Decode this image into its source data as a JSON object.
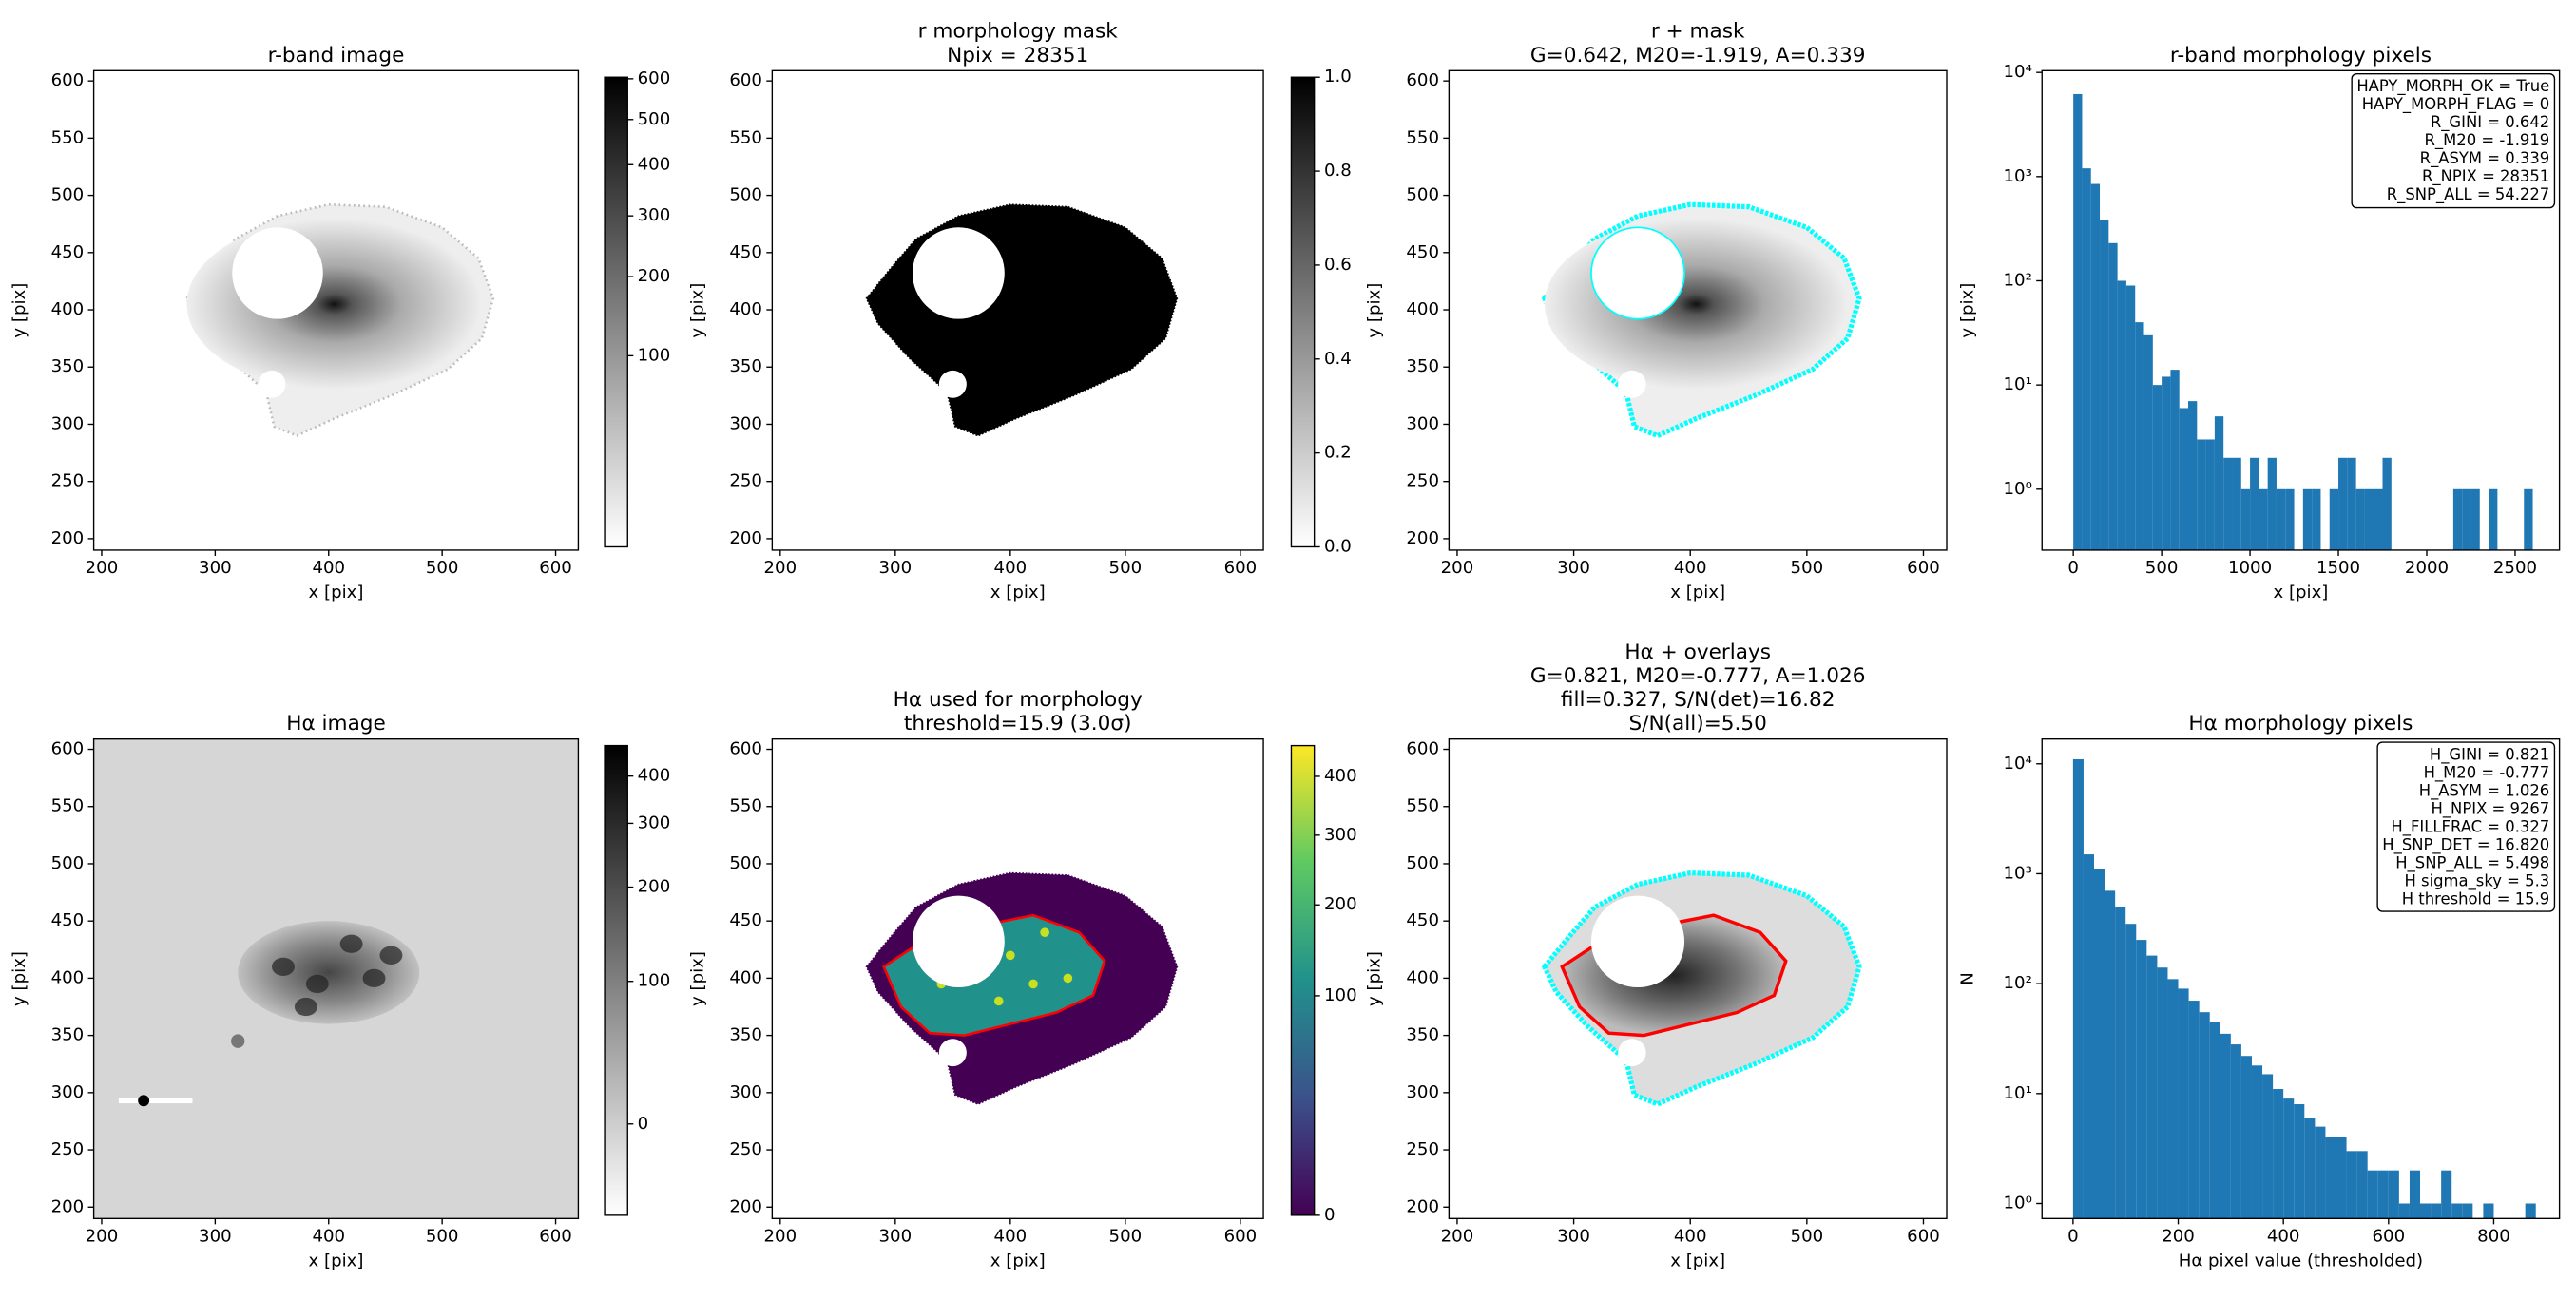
{
  "chart_data": [
    {
      "type": "image",
      "title": [
        "r-band image"
      ],
      "xlabel": "x [pix]",
      "ylabel": "y [pix]",
      "xlim": [
        193,
        620
      ],
      "ylim": [
        190,
        609
      ],
      "xticks": [
        200,
        300,
        400,
        500,
        600
      ],
      "yticks": [
        200,
        250,
        300,
        350,
        400,
        450,
        500,
        550,
        600
      ],
      "colorbar": {
        "cmap": "gray_r",
        "scale": "sqrt",
        "clim": [
          0,
          604
        ],
        "ticks": [
          100,
          200,
          300,
          400,
          500,
          600
        ]
      }
    },
    {
      "type": "image",
      "title": [
        "r morphology mask",
        "Npix = 28351"
      ],
      "xlabel": "x [pix]",
      "ylabel": "y [pix]",
      "xlim": [
        193,
        620
      ],
      "ylim": [
        190,
        609
      ],
      "xticks": [
        200,
        300,
        400,
        500,
        600
      ],
      "yticks": [
        200,
        250,
        300,
        350,
        400,
        450,
        500,
        550,
        600
      ],
      "colorbar": {
        "cmap": "gray_r",
        "scale": "linear",
        "clim": [
          0,
          1
        ],
        "ticks": [
          {
            "value": 0,
            "label": "0.0"
          },
          0.2,
          0.4,
          0.6,
          0.8,
          {
            "value": 1,
            "label": "1.0"
          }
        ]
      }
    },
    {
      "type": "image",
      "title": [
        "r + mask",
        "G=0.642, M20=-1.919, A=0.339"
      ],
      "xlabel": "x [pix]",
      "ylabel": "y [pix]",
      "xlim": [
        193,
        620
      ],
      "ylim": [
        190,
        609
      ],
      "xticks": [
        200,
        300,
        400,
        500,
        600
      ],
      "yticks": [
        200,
        250,
        300,
        350,
        400,
        450,
        500,
        550,
        600
      ]
    },
    {
      "type": "histogram",
      "title": [
        "r-band morphology pixels"
      ],
      "xlabel": "x [pix]",
      "ylabel": "y [pix]",
      "color": "#1f77b4",
      "ylog": true,
      "xlim": [
        -177,
        2751
      ],
      "ylim": [
        0.26,
        10400
      ],
      "xticks": [
        0,
        500,
        1000,
        1500,
        2000,
        2500
      ],
      "yticks": [
        {
          "value": 1,
          "label": "10⁰"
        },
        {
          "value": 10,
          "label": "10¹"
        },
        {
          "value": 100,
          "label": "10²"
        },
        {
          "value": 1000,
          "label": "10³"
        },
        {
          "value": 10000,
          "label": "10⁴"
        }
      ],
      "bins": [
        0,
        50,
        100,
        150,
        200,
        250,
        300,
        350,
        400,
        450,
        500,
        550,
        600,
        650,
        700,
        750,
        800,
        850,
        900,
        950,
        1000,
        1050,
        1100,
        1150,
        1200,
        1250,
        1300,
        1350,
        1400,
        1450,
        1500,
        1550,
        1600,
        1650,
        1700,
        1750,
        1800,
        1850,
        1900,
        1950,
        2000,
        2050,
        2100,
        2150,
        2200,
        2250,
        2300,
        2350,
        2400,
        2450,
        2500,
        2550,
        2600
      ],
      "values": [
        6200,
        1200,
        850,
        380,
        230,
        100,
        90,
        40,
        30,
        10,
        12,
        14,
        6,
        7,
        3,
        3,
        5,
        2,
        2,
        1,
        2,
        1,
        2,
        1,
        1,
        0,
        1,
        1,
        0,
        1,
        2,
        2,
        1,
        1,
        1,
        2,
        0,
        0,
        0,
        0,
        0,
        0,
        0,
        1,
        1,
        1,
        0,
        1,
        0,
        0,
        0,
        1
      ],
      "annotation": [
        "HAPY_MORPH_OK = True",
        "HAPY_MORPH_FLAG = 0",
        "R_GINI = 0.642",
        "R_M20 = -1.919",
        "R_ASYM = 0.339",
        "R_NPIX = 28351",
        "R_SNP_ALL = 54.227"
      ]
    },
    {
      "type": "image",
      "title": [
        "Hα image"
      ],
      "xlabel": "x [pix]",
      "ylabel": "y [pix]",
      "xlim": [
        193,
        620
      ],
      "ylim": [
        190,
        609
      ],
      "xticks": [
        200,
        300,
        400,
        500,
        600
      ],
      "yticks": [
        200,
        250,
        300,
        350,
        400,
        450,
        500,
        550,
        600
      ],
      "colorbar": {
        "cmap": "gray_r",
        "scale": "asinh",
        "clim": [
          -60,
          480
        ],
        "ticks": [
          0,
          100,
          200,
          300,
          400
        ]
      }
    },
    {
      "type": "image",
      "title": [
        "Hα used for morphology",
        "threshold=15.9 (3.0σ)"
      ],
      "xlabel": "x [pix]",
      "ylabel": "y [pix]",
      "xlim": [
        193,
        620
      ],
      "ylim": [
        190,
        609
      ],
      "xticks": [
        200,
        300,
        400,
        500,
        600
      ],
      "yticks": [
        200,
        250,
        300,
        350,
        400,
        450,
        500,
        550,
        600
      ],
      "colorbar": {
        "cmap": "viridis",
        "scale": "sqrt",
        "clim": [
          0,
          458
        ],
        "ticks": [
          0,
          100,
          200,
          300,
          400
        ]
      }
    },
    {
      "type": "image",
      "title": [
        "Hα + overlays",
        "G=0.821, M20=-0.777, A=1.026",
        "fill=0.327, S/N(det)=16.82",
        "S/N(all)=5.50"
      ],
      "xlabel": "x [pix]",
      "ylabel": "y [pix]",
      "xlim": [
        193,
        620
      ],
      "ylim": [
        190,
        609
      ],
      "xticks": [
        200,
        300,
        400,
        500,
        600
      ],
      "yticks": [
        200,
        250,
        300,
        350,
        400,
        450,
        500,
        550,
        600
      ]
    },
    {
      "type": "histogram",
      "title": [
        "Hα morphology pixels"
      ],
      "xlabel": "Hα pixel value (thresholded)",
      "ylabel": "N",
      "color": "#1f77b4",
      "ylog": true,
      "xlim": [
        -59,
        925
      ],
      "ylim": [
        0.73,
        16800
      ],
      "xticks": [
        0,
        200,
        400,
        600,
        800
      ],
      "yticks": [
        {
          "value": 1,
          "label": "10⁰"
        },
        {
          "value": 10,
          "label": "10¹"
        },
        {
          "value": 100,
          "label": "10²"
        },
        {
          "value": 1000,
          "label": "10³"
        },
        {
          "value": 10000,
          "label": "10⁴"
        }
      ],
      "bins": [
        0,
        20,
        40,
        60,
        80,
        100,
        120,
        140,
        160,
        180,
        200,
        220,
        240,
        260,
        280,
        300,
        320,
        340,
        360,
        380,
        400,
        420,
        440,
        460,
        480,
        500,
        520,
        540,
        560,
        580,
        600,
        620,
        640,
        660,
        680,
        700,
        720,
        740,
        760,
        780,
        800,
        820,
        840,
        860,
        880
      ],
      "values": [
        11000,
        1500,
        1100,
        700,
        500,
        350,
        250,
        180,
        140,
        110,
        90,
        70,
        55,
        45,
        35,
        28,
        22,
        18,
        15,
        11,
        9,
        8,
        6,
        5,
        4,
        4,
        3,
        3,
        2,
        2,
        2,
        1,
        2,
        1,
        1,
        2,
        1,
        1,
        0,
        1,
        0,
        0,
        0,
        1
      ],
      "annotation": [
        "H_GINI = 0.821",
        "H_M20 = -0.777",
        "H_ASYM = 1.026",
        "H_NPIX = 9267",
        "H_FILLFRAC = 0.327",
        "H_SNP_DET = 16.820",
        "H_SNP_ALL = 5.498",
        "H sigma_sky = 5.3",
        "H threshold = 15.9"
      ]
    }
  ]
}
